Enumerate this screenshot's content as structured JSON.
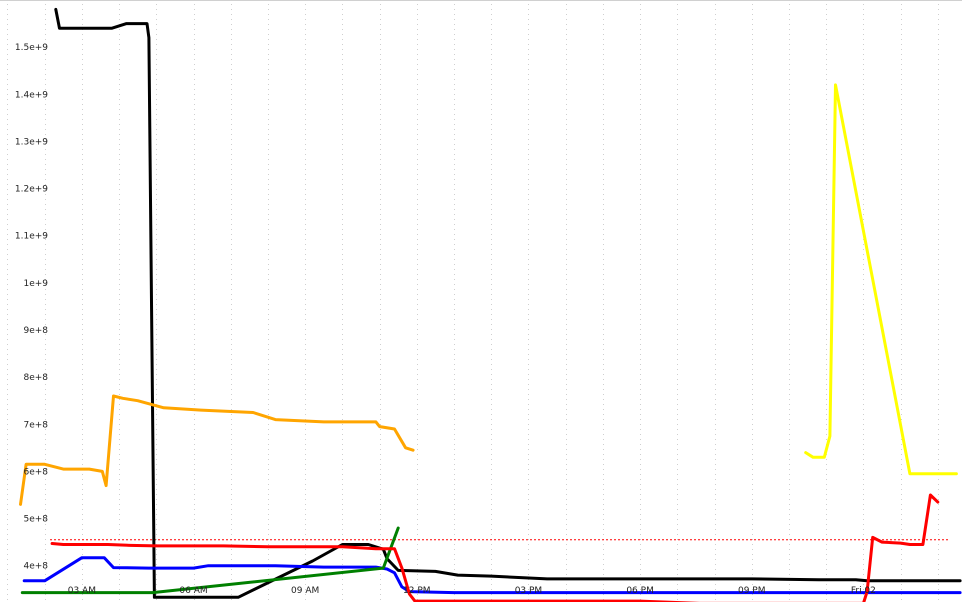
{
  "chart_data": {
    "type": "line",
    "title": "",
    "xlabel": "",
    "ylabel": "",
    "grid": true,
    "legend": "none",
    "x_unit": "hours",
    "xlim": [
      0.8,
      26.65
    ],
    "ylim": [
      323000000.0,
      1600000000.0
    ],
    "x_ticks": [
      {
        "x": 3,
        "label": "03 AM"
      },
      {
        "x": 6,
        "label": "06 AM"
      },
      {
        "x": 9,
        "label": "09 AM"
      },
      {
        "x": 12,
        "label": "12 PM"
      },
      {
        "x": 15,
        "label": "03 PM"
      },
      {
        "x": 18,
        "label": "06 PM"
      },
      {
        "x": 21,
        "label": "09 PM"
      },
      {
        "x": 24,
        "label": "Fri 02"
      }
    ],
    "y_ticks": [
      {
        "y": 400000000.0,
        "label": "4e+8"
      },
      {
        "y": 500000000.0,
        "label": "5e+8"
      },
      {
        "y": 600000000.0,
        "label": "6e+8"
      },
      {
        "y": 700000000.0,
        "label": "7e+8"
      },
      {
        "y": 800000000.0,
        "label": "8e+8"
      },
      {
        "y": 900000000.0,
        "label": "9e+8"
      },
      {
        "y": 1000000000.0,
        "label": "1e+9"
      },
      {
        "y": 1100000000.0,
        "label": "1.1e+9"
      },
      {
        "y": 1200000000.0,
        "label": "1.2e+9"
      },
      {
        "y": 1300000000.0,
        "label": "1.3e+9"
      },
      {
        "y": 1400000000.0,
        "label": "1.4e+9"
      },
      {
        "y": 1500000000.0,
        "label": "1.5e+9"
      }
    ],
    "reference_line": {
      "y": 455000000.0,
      "color": "#ff0000",
      "style": "dotted"
    },
    "series": [
      {
        "color": "#000000",
        "points": [
          [
            2.3,
            1580000000.0
          ],
          [
            2.4,
            1540000000.0
          ],
          [
            3.8,
            1540000000.0
          ],
          [
            4.2,
            1550000000.0
          ],
          [
            4.75,
            1550000000.0
          ],
          [
            4.8,
            1520000000.0
          ],
          [
            4.95,
            333000000.0
          ],
          [
            6.2,
            333000000.0
          ],
          [
            7.2,
            333000000.0
          ],
          [
            9.2,
            410000000.0
          ],
          [
            10.0,
            445000000.0
          ],
          [
            10.7,
            445000000.0
          ],
          [
            11.1,
            435000000.0
          ],
          [
            11.2,
            415000000.0
          ],
          [
            11.5,
            390000000.0
          ],
          [
            12.5,
            388000000.0
          ],
          [
            13.1,
            380000000.0
          ],
          [
            14.0,
            378000000.0
          ],
          [
            15.5,
            372000000.0
          ],
          [
            17.0,
            372000000.0
          ],
          [
            19.0,
            372000000.0
          ],
          [
            21.0,
            372000000.0
          ],
          [
            22.8,
            370000000.0
          ],
          [
            23.8,
            370000000.0
          ],
          [
            24.1,
            368000000.0
          ],
          [
            25.5,
            368000000.0
          ],
          [
            26.6,
            368000000.0
          ]
        ]
      },
      {
        "color": "#ffa500",
        "points": [
          [
            1.35,
            530000000.0
          ],
          [
            1.5,
            615000000.0
          ],
          [
            2.0,
            615000000.0
          ],
          [
            2.5,
            605000000.0
          ],
          [
            3.2,
            605000000.0
          ],
          [
            3.55,
            600000000.0
          ],
          [
            3.65,
            570000000.0
          ],
          [
            3.85,
            760000000.0
          ],
          [
            4.1,
            755000000.0
          ],
          [
            4.5,
            750000000.0
          ],
          [
            5.2,
            735000000.0
          ],
          [
            6.2,
            730000000.0
          ],
          [
            7.6,
            725000000.0
          ],
          [
            8.2,
            710000000.0
          ],
          [
            9.5,
            705000000.0
          ],
          [
            10.9,
            705000000.0
          ],
          [
            11.0,
            695000000.0
          ],
          [
            11.4,
            690000000.0
          ],
          [
            11.7,
            650000000.0
          ],
          [
            11.9,
            645000000.0
          ]
        ]
      },
      {
        "color": "#0000ff",
        "points": [
          [
            1.45,
            368000000.0
          ],
          [
            2.0,
            368000000.0
          ],
          [
            3.0,
            417000000.0
          ],
          [
            3.6,
            417000000.0
          ],
          [
            3.85,
            396000000.0
          ],
          [
            4.8,
            395000000.0
          ],
          [
            6.0,
            395000000.0
          ],
          [
            6.4,
            400000000.0
          ],
          [
            8.2,
            400000000.0
          ],
          [
            9.5,
            397000000.0
          ],
          [
            10.9,
            397000000.0
          ],
          [
            11.2,
            393000000.0
          ],
          [
            11.4,
            385000000.0
          ],
          [
            11.6,
            355000000.0
          ],
          [
            11.8,
            345000000.0
          ],
          [
            13.0,
            343000000.0
          ],
          [
            15.0,
            343000000.0
          ],
          [
            18.0,
            343000000.0
          ],
          [
            21.0,
            343000000.0
          ],
          [
            23.5,
            343000000.0
          ],
          [
            24.0,
            343000000.0
          ],
          [
            25.5,
            343000000.0
          ],
          [
            26.6,
            343000000.0
          ]
        ]
      },
      {
        "color": "#008000",
        "points": [
          [
            1.4,
            343000000.0
          ],
          [
            2.5,
            343000000.0
          ],
          [
            4.9,
            343000000.0
          ],
          [
            11.1,
            395000000.0
          ],
          [
            11.5,
            480000000.0
          ]
        ]
      },
      {
        "color": "#ff0000",
        "points": [
          [
            2.2,
            447000000.0
          ],
          [
            2.5,
            445000000.0
          ],
          [
            3.7,
            445000000.0
          ],
          [
            4.3,
            443000000.0
          ],
          [
            5.0,
            442000000.0
          ],
          [
            6.8,
            442000000.0
          ],
          [
            8.0,
            440000000.0
          ],
          [
            10.0,
            440000000.0
          ],
          [
            10.9,
            436000000.0
          ],
          [
            11.4,
            436000000.0
          ],
          [
            11.6,
            395000000.0
          ],
          [
            11.8,
            340000000.0
          ],
          [
            11.95,
            325000000.0
          ],
          [
            13.0,
            325000000.0
          ],
          [
            15.0,
            325000000.0
          ],
          [
            18.0,
            325000000.0
          ],
          [
            19.6,
            320000000.0
          ],
          [
            21.0,
            320000000.0
          ],
          [
            22.9,
            320000000.0
          ],
          [
            24.0,
            320000000.0
          ],
          [
            24.1,
            345000000.0
          ],
          [
            24.25,
            460000000.0
          ],
          [
            24.5,
            450000000.0
          ],
          [
            25.0,
            448000000.0
          ],
          [
            25.25,
            445000000.0
          ],
          [
            25.6,
            445000000.0
          ],
          [
            25.8,
            550000000.0
          ],
          [
            26.0,
            535000000.0
          ]
        ]
      },
      {
        "color": "#ffff00",
        "points": [
          [
            22.45,
            640000000.0
          ],
          [
            22.65,
            630000000.0
          ],
          [
            22.95,
            630000000.0
          ],
          [
            23.1,
            675000000.0
          ],
          [
            23.25,
            1420000000.0
          ],
          [
            25.25,
            595000000.0
          ],
          [
            26.0,
            595000000.0
          ],
          [
            26.5,
            595000000.0
          ]
        ]
      }
    ]
  }
}
